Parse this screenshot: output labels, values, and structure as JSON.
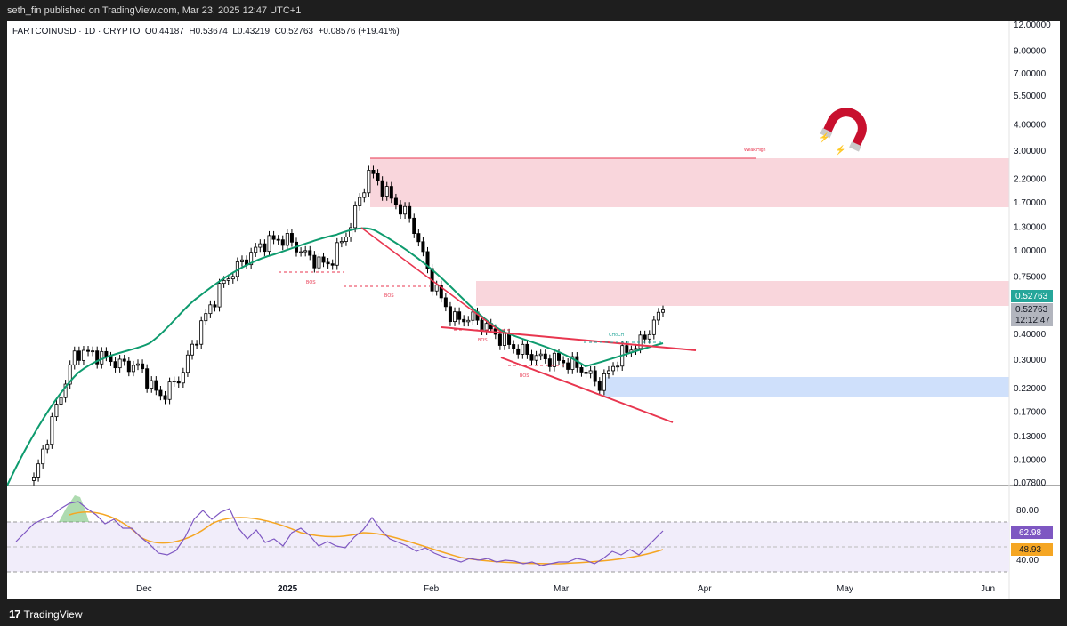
{
  "header": {
    "published": "seth_fin published on TradingView.com, Mar 23, 2025 12:47 UTC+1"
  },
  "symbol_line": "FARTCOINUSD · 1D · CRYPTO  O0.44187  H0.53674  L0.43219  C0.52763  +0.08576 (+19.41%)",
  "price_axis": {
    "labels": [
      "12.00000",
      "9.00000",
      "7.00000",
      "5.50000",
      "4.00000",
      "3.00000",
      "2.20000",
      "1.70000",
      "1.30000",
      "1.00000",
      "0.75000",
      "0.40000",
      "0.30000",
      "0.22000",
      "0.17000",
      "0.13000",
      "0.10000",
      "0.07800"
    ],
    "last_price": "0.52763",
    "last_price_gray": "0.52763",
    "countdown": "12:12:47",
    "last_price_color": "#26a69a"
  },
  "rsi_axis": {
    "labels": [
      "80.00",
      "40.00"
    ],
    "rsi_value": "62.98",
    "rsi_ma_value": "48.93",
    "rsi_color": "#7e57c2",
    "rsi_ma_color": "#f5a623"
  },
  "time_axis": [
    "Dec",
    "2025",
    "Feb",
    "Mar",
    "Apr",
    "May",
    "Jun"
  ],
  "annotations": {
    "bos_1": "BOS",
    "bos_2": "BOS",
    "bos_3": "BOS",
    "bos_4": "BOS",
    "choch": "CHoCH",
    "weak_high": "Weak High"
  },
  "footer": {
    "brand": "TradingView",
    "logo_mark": "17"
  },
  "colors": {
    "up": "#26a69a",
    "candle": "#000000",
    "ma": "#0e9b6e",
    "zone_red": "#f9d6dc",
    "zone_blue": "#cfe0fb",
    "line_red": "#e8364f"
  },
  "chart_data": {
    "type": "candlestick",
    "title": "FARTCOINUSD · 1D · CRYPTO",
    "ylabel": "",
    "xlabel": "",
    "y_scale": "log",
    "ylim": [
      0.078,
      12
    ],
    "x": [
      "2024-11-01",
      "2024-11-05",
      "2024-11-10",
      "2024-11-15",
      "2024-11-20",
      "2024-11-25",
      "2024-12-01",
      "2024-12-05",
      "2024-12-10",
      "2024-12-15",
      "2024-12-20",
      "2024-12-25",
      "2025-01-01",
      "2025-01-05",
      "2025-01-10",
      "2025-01-15",
      "2025-01-19",
      "2025-01-22",
      "2025-01-25",
      "2025-02-01",
      "2025-02-05",
      "2025-02-10",
      "2025-02-15",
      "2025-02-20",
      "2025-02-25",
      "2025-03-01",
      "2025-03-05",
      "2025-03-10",
      "2025-03-15",
      "2025-03-20",
      "2025-03-23"
    ],
    "series": [
      {
        "values": [
          0.08,
          0.17,
          0.33,
          0.32,
          0.29,
          0.28,
          0.2,
          0.25,
          0.45,
          0.7,
          0.9,
          1.1,
          1.15,
          0.95,
          0.85,
          1.25,
          2.4,
          1.8,
          1.4,
          0.7,
          0.47,
          0.48,
          0.4,
          0.34,
          0.31,
          0.3,
          0.28,
          0.23,
          0.32,
          0.37,
          0.53
        ]
      }
    ],
    "rsi": {
      "ylim": [
        0,
        100
      ],
      "levels": [
        80,
        40
      ],
      "x": [
        "2024-11-01",
        "2024-11-10",
        "2024-11-20",
        "2024-12-01",
        "2024-12-10",
        "2024-12-20",
        "2025-01-01",
        "2025-01-10",
        "2025-01-19",
        "2025-02-01",
        "2025-02-15",
        "2025-03-01",
        "2025-03-10",
        "2025-03-23"
      ],
      "values": [
        60,
        85,
        70,
        52,
        78,
        82,
        64,
        52,
        77,
        45,
        40,
        38,
        44,
        62.98
      ],
      "ma_values": [
        55,
        75,
        72,
        62,
        62,
        70,
        66,
        60,
        62,
        50,
        42,
        38,
        40,
        48.93
      ]
    }
  }
}
